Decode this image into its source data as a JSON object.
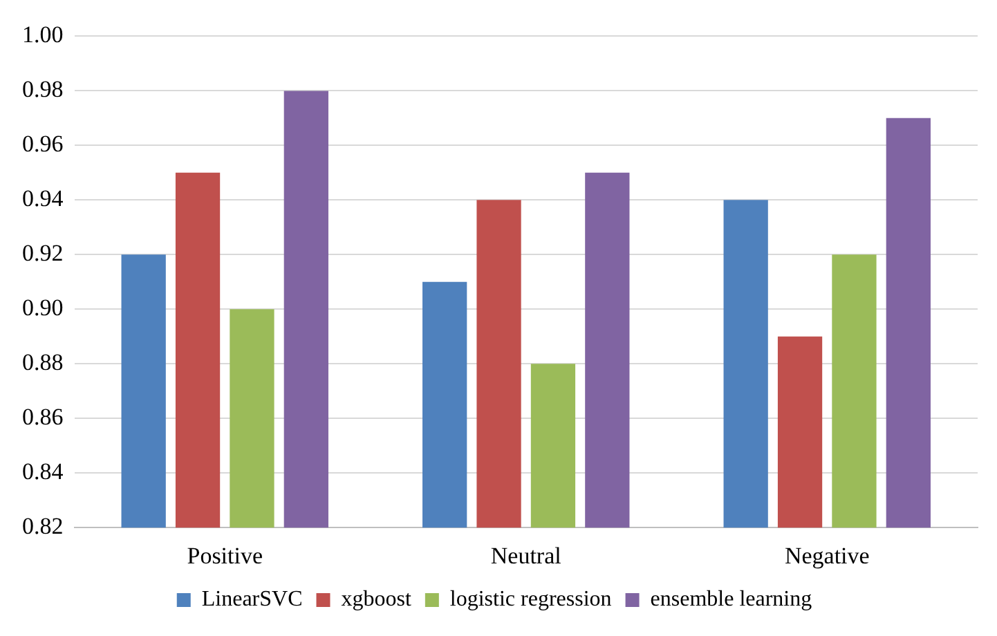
{
  "chart_data": {
    "type": "bar",
    "categories": [
      "Positive",
      "Neutral",
      "Negative"
    ],
    "series": [
      {
        "name": "LinearSVC",
        "color": "#4f81bd",
        "values": [
          0.92,
          0.91,
          0.94
        ]
      },
      {
        "name": "xgboost",
        "color": "#c0504d",
        "values": [
          0.95,
          0.94,
          0.89
        ]
      },
      {
        "name": "logistic regression",
        "color": "#9bbb59",
        "values": [
          0.9,
          0.88,
          0.92
        ]
      },
      {
        "name": "ensemble learning",
        "color": "#8064a2",
        "values": [
          0.98,
          0.95,
          0.97
        ]
      }
    ],
    "ylim": [
      0.82,
      1.0
    ],
    "yticks": [
      0.82,
      0.84,
      0.86,
      0.88,
      {
        "value": 0.9,
        "label": "0.90"
      },
      0.92,
      0.94,
      0.96,
      0.98,
      {
        "value": 1,
        "label": "1.00"
      }
    ],
    "grid": "y",
    "legend": "bottom"
  }
}
